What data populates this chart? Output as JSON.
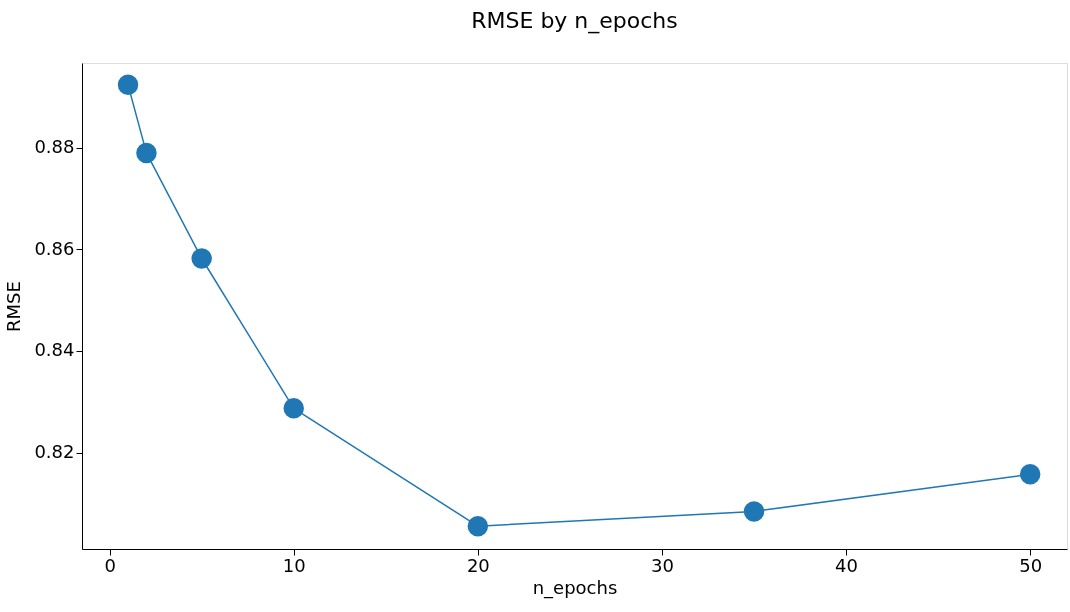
{
  "chart_data": {
    "type": "line",
    "title": "RMSE by n_epochs",
    "xlabel": "n_epochs",
    "ylabel": "RMSE",
    "x": [
      1,
      2,
      5,
      10,
      20,
      35,
      50
    ],
    "series": [
      {
        "color": "#1f77b4",
        "values": [
          0.8924,
          0.879,
          0.8582,
          0.8287,
          0.8055,
          0.8084,
          0.8157
        ]
      }
    ],
    "xlim": [
      -1.5,
      52
    ],
    "xticks": [
      0,
      10,
      20,
      30,
      40,
      50
    ],
    "ylim": [
      0.801,
      0.8967
    ],
    "yticks": [
      0.82,
      0.84,
      0.86,
      0.88
    ],
    "grid": false,
    "legend": false,
    "marker": "circle",
    "line_style": "solid"
  }
}
